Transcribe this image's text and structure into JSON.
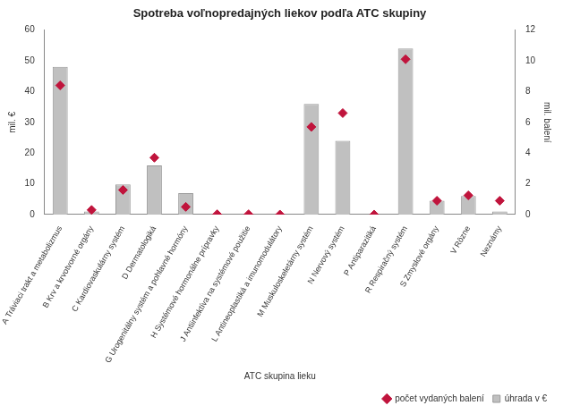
{
  "chart_data": {
    "type": "bar",
    "title": "Spotreba voľnopredajných liekov podľa ATC skupiny",
    "x_label": "ATC skupina lieku",
    "y_label": "mil. €",
    "y2_label": "mil. balení",
    "categories": [
      "A Tráviaci trakt a metabolizmus",
      "B Krv a krvotvorné orgány",
      "C Kardiovaskulárny systém",
      "D Dermatologiká",
      "G Urogenitálny systém a pohlavné hormóny",
      "H Systémové hormonálne prípravky",
      "J Antiinfektíva na systémové použitie",
      "L Antineoplastiká a imunomodulátory",
      "M Muskuloskeletárny systém",
      "N Nervový systém",
      "P Antiparazitiká",
      "R Respiračný systém",
      "S Zmyslové orgány",
      "V Rôzne",
      "Neznámy"
    ],
    "series": [
      {
        "name": "úhrada v €",
        "type": "bar",
        "color": "#c0c0c0",
        "values": [
          48,
          1,
          9.8,
          16,
          7,
          0,
          0,
          0,
          36,
          24,
          0,
          54,
          4.5,
          6,
          1
        ]
      },
      {
        "name": "počet vydaných balení",
        "type": "scatter",
        "marker": "diamond",
        "color": "#c0143c",
        "axis": "y2",
        "values": [
          8.4,
          0.3,
          1.6,
          3.7,
          0.5,
          0.02,
          0.02,
          0,
          5.7,
          6.6,
          0,
          10.1,
          0.9,
          1.25,
          0.9
        ]
      }
    ],
    "ylim": [
      0,
      60
    ],
    "yticks": [
      0,
      10,
      20,
      30,
      40,
      50,
      60
    ],
    "y2lim": [
      0,
      12
    ],
    "y2ticks": [
      0,
      2,
      4,
      6,
      8,
      10,
      12
    ],
    "grid": false,
    "legend": "bottom-right"
  }
}
